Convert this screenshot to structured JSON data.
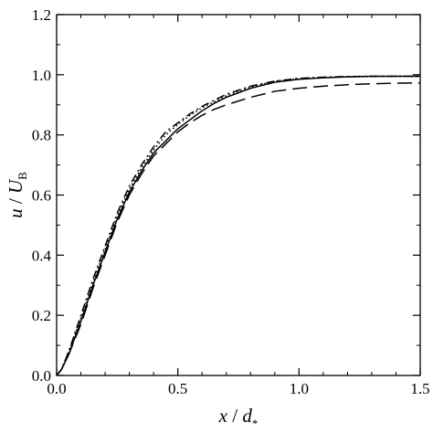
{
  "chart_data": {
    "type": "line",
    "title": "",
    "xlabel": "x / d*",
    "ylabel": "u / U_B",
    "xlabel_parts": {
      "var": "x",
      "sep": " / ",
      "den": "d",
      "sub": "*"
    },
    "ylabel_parts": {
      "var": "u",
      "sep": " / ",
      "den": "U",
      "sub": "B"
    },
    "xlim": [
      0.0,
      1.5
    ],
    "ylim": [
      0.0,
      1.2
    ],
    "xticks": [
      0.0,
      0.5,
      1.0,
      1.5
    ],
    "xtick_labels": [
      "0.0",
      "0.5",
      "1.0",
      "1.5"
    ],
    "yticks": [
      0.0,
      0.2,
      0.4,
      0.6,
      0.8,
      1.0,
      1.2
    ],
    "ytick_labels": [
      "0.0",
      "0.2",
      "0.4",
      "0.6",
      "0.8",
      "1.0",
      "1.2"
    ],
    "grid": false,
    "legend": "none",
    "series": [
      {
        "style": "solid",
        "x": [
          0,
          0.02,
          0.05,
          0.1,
          0.15,
          0.2,
          0.25,
          0.3,
          0.35,
          0.4,
          0.45,
          0.5,
          0.55,
          0.6,
          0.65,
          0.7,
          0.8,
          0.9,
          1.0,
          1.1,
          1.2,
          1.3,
          1.4,
          1.5
        ],
        "y": [
          0,
          0.02,
          0.07,
          0.18,
          0.3,
          0.41,
          0.52,
          0.61,
          0.68,
          0.74,
          0.78,
          0.82,
          0.85,
          0.88,
          0.905,
          0.925,
          0.955,
          0.975,
          0.985,
          0.99,
          0.993,
          0.995,
          0.995,
          0.995
        ]
      },
      {
        "style": "dashed",
        "x": [
          0,
          0.02,
          0.05,
          0.1,
          0.15,
          0.2,
          0.25,
          0.3,
          0.35,
          0.4,
          0.45,
          0.5,
          0.55,
          0.6,
          0.65,
          0.7,
          0.8,
          0.9,
          1.0,
          1.1,
          1.2,
          1.3,
          1.4,
          1.5
        ],
        "y": [
          0,
          0.02,
          0.07,
          0.17,
          0.29,
          0.4,
          0.51,
          0.6,
          0.67,
          0.73,
          0.77,
          0.81,
          0.84,
          0.865,
          0.885,
          0.9,
          0.925,
          0.945,
          0.955,
          0.962,
          0.967,
          0.97,
          0.972,
          0.973
        ]
      },
      {
        "style": "dotted",
        "x": [
          0,
          0.02,
          0.05,
          0.1,
          0.15,
          0.2,
          0.25,
          0.3,
          0.35,
          0.4,
          0.45,
          0.5,
          0.55,
          0.6,
          0.65,
          0.7,
          0.8,
          0.9,
          1.0,
          1.1,
          1.2,
          1.3,
          1.4,
          1.5
        ],
        "y": [
          0,
          0.02,
          0.08,
          0.19,
          0.31,
          0.42,
          0.53,
          0.62,
          0.69,
          0.75,
          0.8,
          0.835,
          0.865,
          0.89,
          0.91,
          0.93,
          0.96,
          0.978,
          0.987,
          0.991,
          0.993,
          0.994,
          0.995,
          0.995
        ]
      },
      {
        "style": "dash-dot",
        "x": [
          0,
          0.02,
          0.05,
          0.1,
          0.15,
          0.2,
          0.25,
          0.3,
          0.35,
          0.4,
          0.45,
          0.5,
          0.55,
          0.6,
          0.65,
          0.7,
          0.8,
          0.9,
          1.0,
          1.1,
          1.2,
          1.3,
          1.4,
          1.5
        ],
        "y": [
          0,
          0.02,
          0.08,
          0.2,
          0.32,
          0.43,
          0.54,
          0.63,
          0.7,
          0.76,
          0.81,
          0.84,
          0.87,
          0.895,
          0.915,
          0.935,
          0.962,
          0.979,
          0.988,
          0.992,
          0.994,
          0.995,
          0.995,
          0.995
        ]
      }
    ]
  }
}
